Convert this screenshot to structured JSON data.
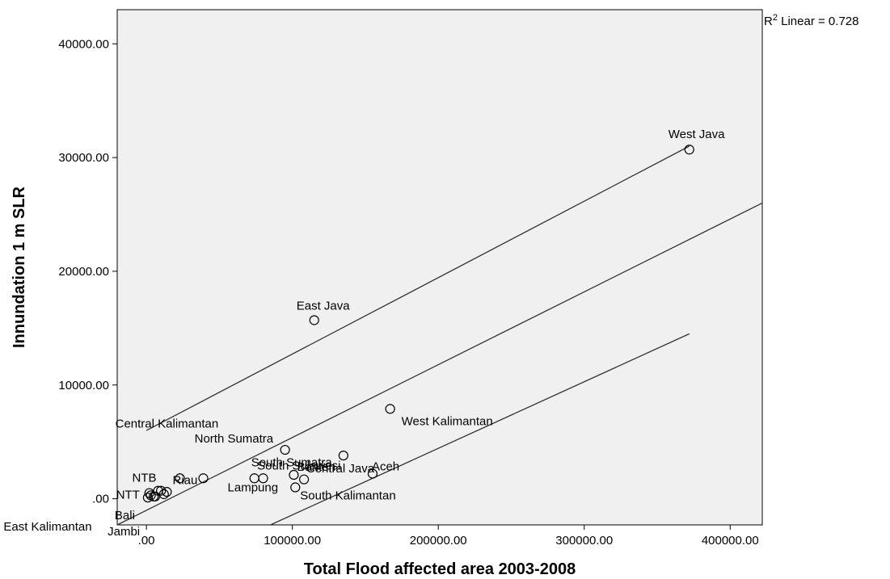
{
  "chart_data": {
    "type": "scatter",
    "xlabel": "Total Flood affected area 2003-2008",
    "ylabel": "Innundation 1 m SLR",
    "xlim": [
      -20000,
      422000
    ],
    "ylim": [
      -2300,
      43000
    ],
    "xticks": [
      {
        "value": 0,
        "label": ".00"
      },
      {
        "value": 100000,
        "label": "100000.00"
      },
      {
        "value": 200000,
        "label": "200000.00"
      },
      {
        "value": 300000,
        "label": "300000.00"
      },
      {
        "value": 400000,
        "label": "400000.00"
      }
    ],
    "yticks": [
      {
        "value": 0,
        "label": ".00"
      },
      {
        "value": 10000,
        "label": "10000.00"
      },
      {
        "value": 20000,
        "label": "20000.00"
      },
      {
        "value": 30000,
        "label": "30000.00"
      },
      {
        "value": 40000,
        "label": "40000.00"
      }
    ],
    "annotation": {
      "prefix": "R",
      "sup": "2",
      "suffix": " Linear = 0.728"
    },
    "points": [
      {
        "label": "West Java",
        "x": 372000,
        "y": 30700
      },
      {
        "label": "East Java",
        "x": 115000,
        "y": 15700
      },
      {
        "label": "West Kalimantan",
        "x": 167000,
        "y": 7900
      },
      {
        "label": "Central Java",
        "x": 135000,
        "y": 3800
      },
      {
        "label": "Aceh",
        "x": 155000,
        "y": 2200
      },
      {
        "label": "North Sumatra",
        "x": 95000,
        "y": 4300
      },
      {
        "label": "South Sulawesi",
        "x": 108000,
        "y": 1700
      },
      {
        "label": "Banten",
        "x": 101000,
        "y": 2100
      },
      {
        "label": "South Kalimantan",
        "x": 102000,
        "y": 1000
      },
      {
        "label": "Lampung",
        "x": 80000,
        "y": 1800
      },
      {
        "label": "South Sumatra",
        "x": 74000,
        "y": 1800
      },
      {
        "label": "Riau",
        "x": 39000,
        "y": 1800
      },
      {
        "label": "Central Kalimantan",
        "x": 23000,
        "y": 1800
      },
      {
        "label": "NTB",
        "x": 8000,
        "y": 700
      },
      {
        "label": "NTT",
        "x": 2000,
        "y": 500
      },
      {
        "label": "Bali",
        "x": 1000,
        "y": 100
      },
      {
        "label": "East Kalimantan",
        "x": 14000,
        "y": 600
      },
      {
        "label": "Jambi",
        "x": 5000,
        "y": 200
      },
      {
        "label": "",
        "x": 3000,
        "y": 300
      },
      {
        "label": "",
        "x": 6000,
        "y": 200
      },
      {
        "label": "",
        "x": 10000,
        "y": 700
      },
      {
        "label": "",
        "x": 12000,
        "y": 400
      }
    ],
    "lines": [
      {
        "name": "upper",
        "x1": 0,
        "y1": 6000,
        "x2": 372000,
        "y2": 31000
      },
      {
        "name": "fit",
        "x1": -20000,
        "y1": -2300,
        "x2": 422000,
        "y2": 26000
      },
      {
        "name": "lower",
        "x1": 85000,
        "y1": -2300,
        "x2": 372000,
        "y2": 14500
      }
    ],
    "grid": false
  }
}
